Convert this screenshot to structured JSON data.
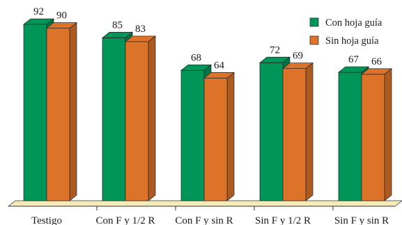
{
  "chart_data": {
    "type": "bar",
    "style": "3d-clustered",
    "categories": [
      "Testigo",
      "Con F y 1/2 R",
      "Con F y sin R",
      "Sin F y 1/2 R",
      "Sin F y sin R"
    ],
    "series": [
      {
        "name": "Con hoja guía",
        "values": [
          92,
          85,
          68,
          72,
          67
        ],
        "color": "#00965a"
      },
      {
        "name": "Sin hoja guía",
        "values": [
          90,
          83,
          64,
          69,
          66
        ],
        "color": "#dc7328"
      }
    ],
    "data_labels": true,
    "ylim": [
      0,
      100
    ],
    "grid": false,
    "legend_position": "top-right",
    "floor_color": "#f5ebb9"
  }
}
